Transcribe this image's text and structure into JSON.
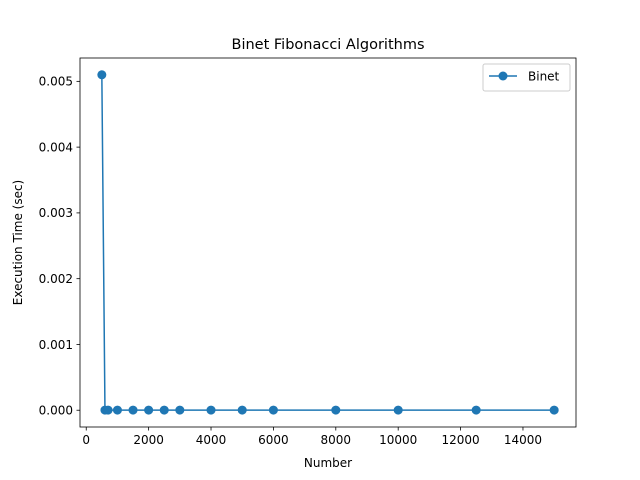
{
  "chart_data": {
    "type": "line",
    "title": "Binet Fibonacci Algorithms",
    "xlabel": "Number",
    "ylabel": "Execution Time (sec)",
    "xlim": [
      -200,
      15700
    ],
    "ylim": [
      -0.000255,
      0.005355
    ],
    "x_ticks": [
      0,
      2000,
      4000,
      6000,
      8000,
      10000,
      12000,
      14000
    ],
    "x_tick_labels": [
      "0",
      "2000",
      "4000",
      "6000",
      "8000",
      "10000",
      "12000",
      "14000"
    ],
    "y_ticks": [
      0,
      0.001,
      0.002,
      0.003,
      0.004,
      0.005
    ],
    "y_tick_labels": [
      "0.000",
      "0.001",
      "0.002",
      "0.003",
      "0.004",
      "0.005"
    ],
    "grid": false,
    "legend_position": "top-right",
    "series": [
      {
        "name": "Binet",
        "color": "#1f77b4",
        "marker": "circle",
        "x": [
          500,
          600,
          700,
          1000,
          1500,
          2000,
          2500,
          3000,
          4000,
          5000,
          6000,
          8000,
          10000,
          12500,
          15000
        ],
        "y": [
          0.0051,
          2e-06,
          2e-06,
          2e-06,
          2e-06,
          2e-06,
          2e-06,
          2e-06,
          2e-06,
          2e-06,
          2e-06,
          2e-06,
          2e-06,
          2e-06,
          2e-06
        ]
      }
    ]
  }
}
